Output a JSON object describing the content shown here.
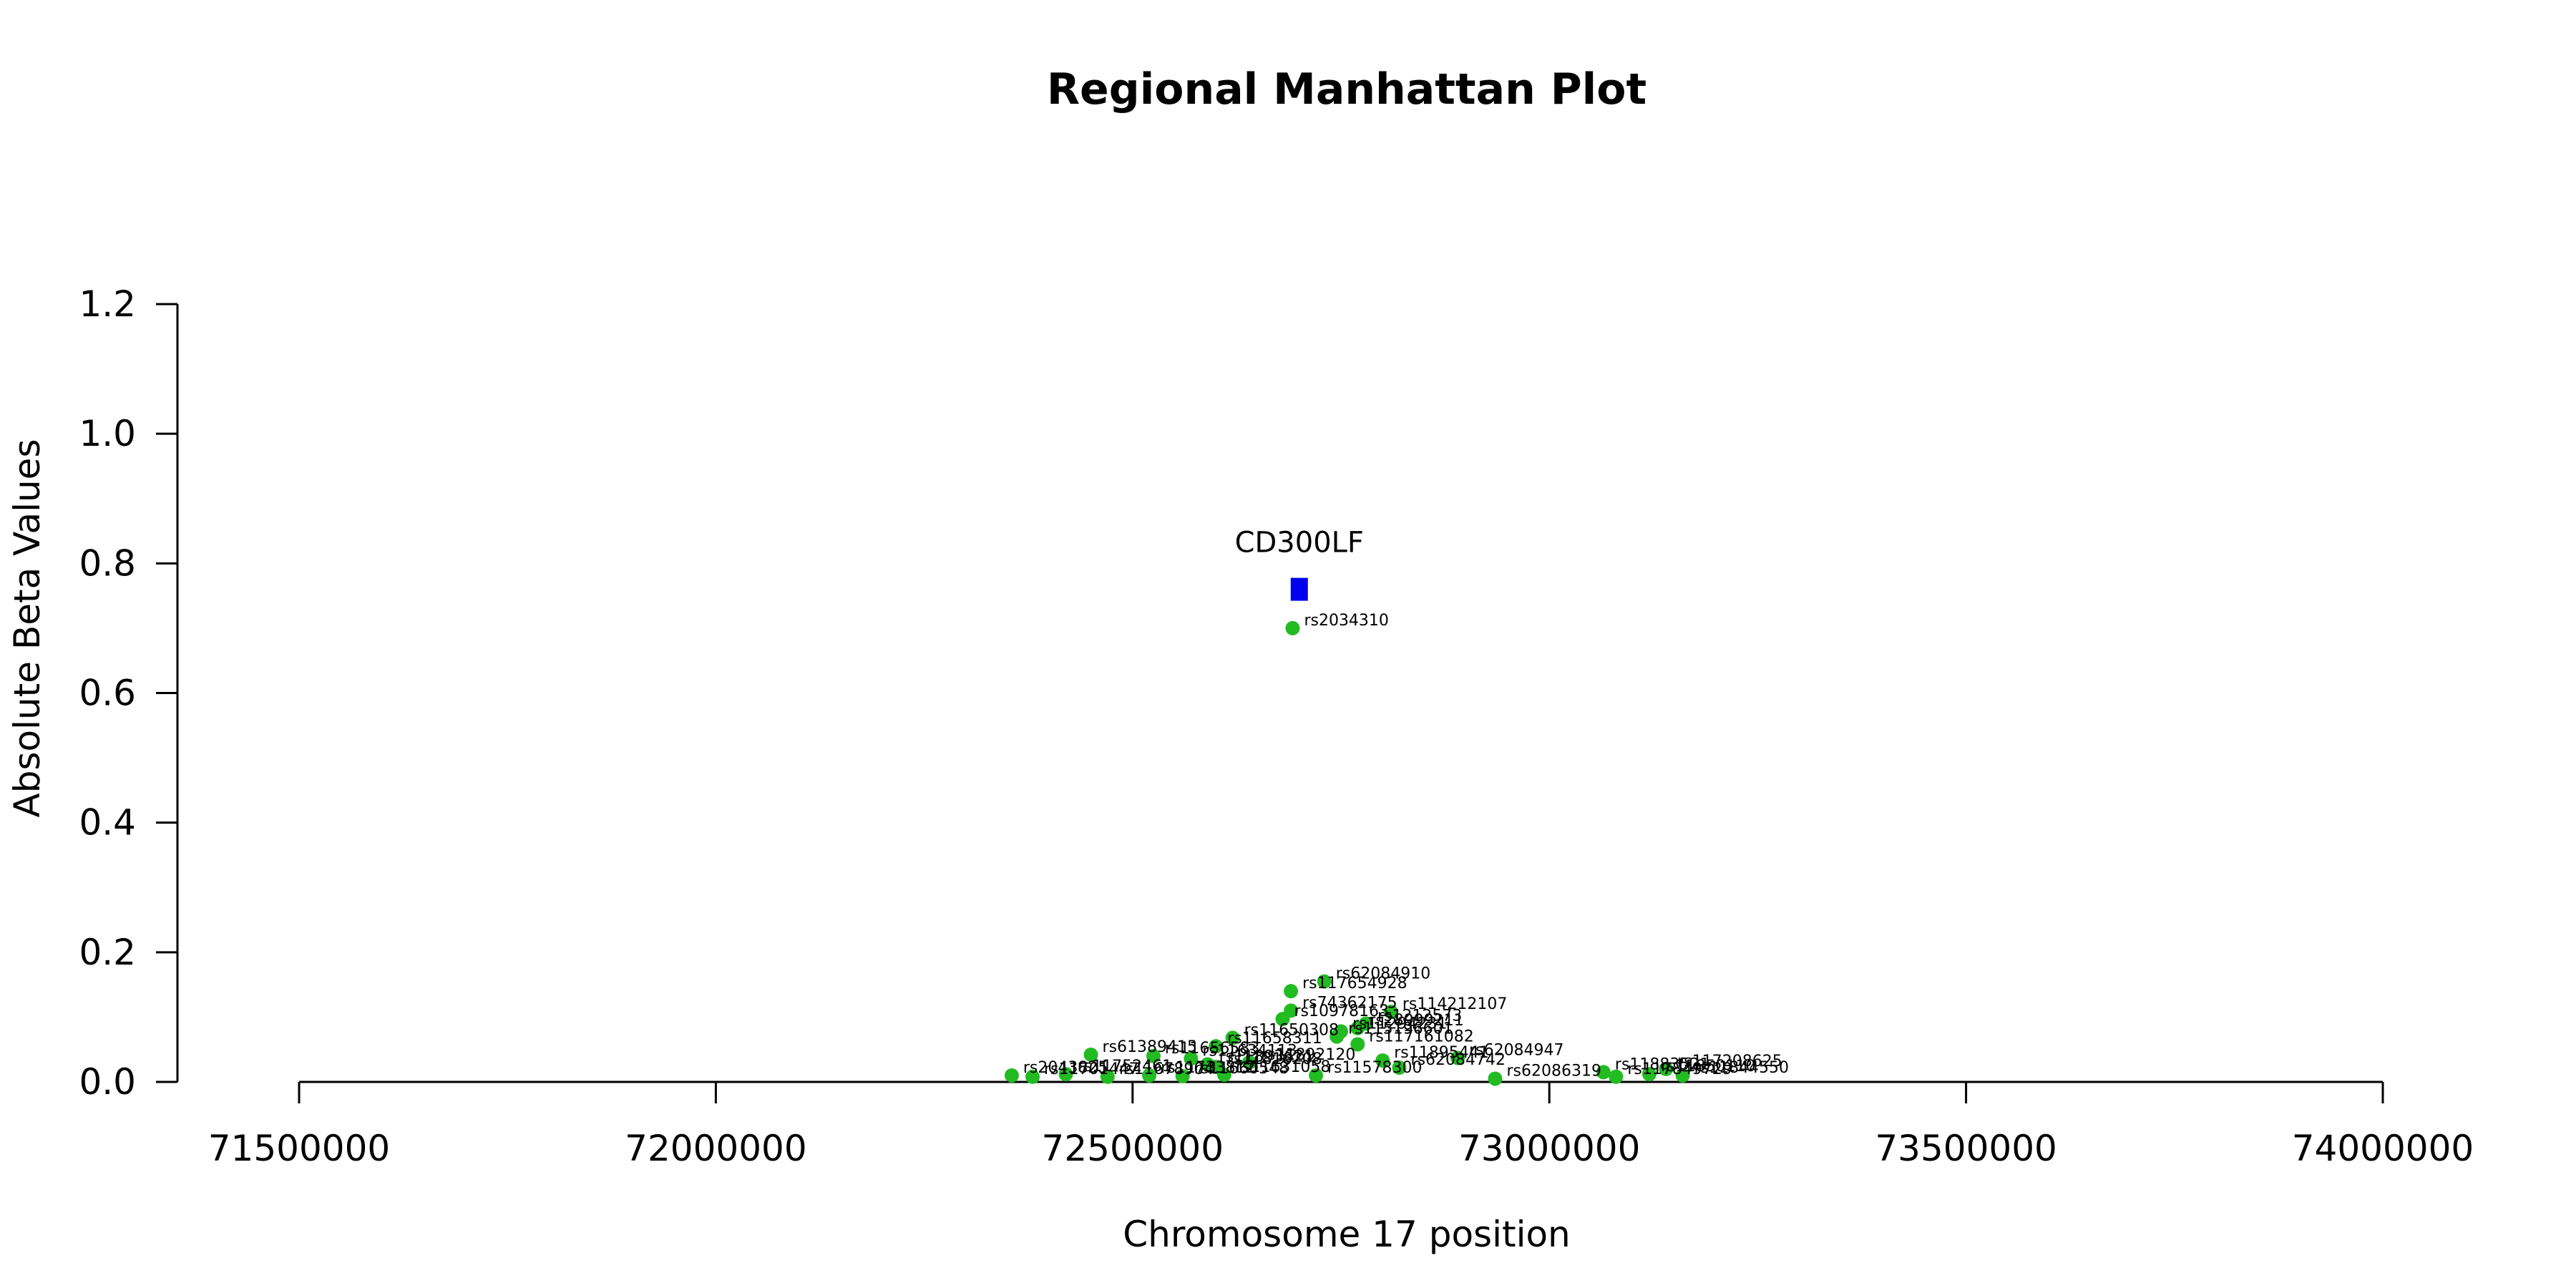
{
  "chart_data": {
    "type": "scatter",
    "title": "Regional Manhattan Plot",
    "xlabel": "Chromosome 17 position",
    "ylabel": "Absolute Beta Values",
    "xlim": [
      71500000,
      74000000
    ],
    "ylim": [
      0,
      1.2
    ],
    "x_ticks": [
      "71500000",
      "72000000",
      "72500000",
      "73000000",
      "73500000",
      "74000000"
    ],
    "y_ticks": [
      "0.0",
      "0.2",
      "0.4",
      "0.6",
      "0.8",
      "1.0",
      "1.2"
    ],
    "grid": false,
    "colors": {
      "snp": "#22bb22",
      "gene": "#0000ee"
    },
    "gene": {
      "name": "CD300LF",
      "x": 72700000,
      "y": 0.76
    },
    "series": [
      {
        "points": [
          {
            "label": "rs2034310",
            "x": 72692000,
            "y": 0.7
          },
          {
            "label": "rs62084910",
            "x": 72730000,
            "y": 0.155
          },
          {
            "label": "rs117654928",
            "x": 72690000,
            "y": 0.14
          },
          {
            "label": "rs114212107",
            "x": 72810000,
            "y": 0.108
          },
          {
            "label": "rs74362175",
            "x": 72690000,
            "y": 0.11
          },
          {
            "label": "rs10978163",
            "x": 72680000,
            "y": 0.097
          },
          {
            "label": "rs1212573",
            "x": 72780000,
            "y": 0.09
          },
          {
            "label": "rs28999211",
            "x": 72770000,
            "y": 0.083
          },
          {
            "label": "rs11294231",
            "x": 72750000,
            "y": 0.078
          },
          {
            "label": "rs11650308",
            "x": 72620000,
            "y": 0.068
          },
          {
            "label": "rs115196601",
            "x": 72745000,
            "y": 0.07
          },
          {
            "label": "rs117161082",
            "x": 72770000,
            "y": 0.058
          },
          {
            "label": "rs61389415",
            "x": 72450000,
            "y": 0.042
          },
          {
            "label": "rs11656583",
            "x": 72525000,
            "y": 0.04
          },
          {
            "label": "rs11658311",
            "x": 72600000,
            "y": 0.055
          },
          {
            "label": "rs11634113",
            "x": 72570000,
            "y": 0.036
          },
          {
            "label": "rs11892120",
            "x": 72640000,
            "y": 0.03
          },
          {
            "label": "rs62084947",
            "x": 72890000,
            "y": 0.037
          },
          {
            "label": "rs11895441",
            "x": 72800000,
            "y": 0.033
          },
          {
            "label": "rs62084742",
            "x": 72820000,
            "y": 0.022
          },
          {
            "label": "rs11893621",
            "x": 72590000,
            "y": 0.027
          },
          {
            "label": "rs11816208",
            "x": 72600000,
            "y": 0.023
          },
          {
            "label": "rs11578300",
            "x": 72720000,
            "y": 0.01
          },
          {
            "label": "rs62086319",
            "x": 72935000,
            "y": 0.005
          },
          {
            "label": "rs11883521",
            "x": 73065000,
            "y": 0.015
          },
          {
            "label": "rs117208625",
            "x": 73140000,
            "y": 0.02
          },
          {
            "label": "rs117849729",
            "x": 73080000,
            "y": 0.008
          },
          {
            "label": "rs11844550",
            "x": 73160000,
            "y": 0.01
          },
          {
            "label": "rs11850110",
            "x": 73120000,
            "y": 0.012
          },
          {
            "label": "rs2043825",
            "x": 72355000,
            "y": 0.01
          },
          {
            "label": "rs11701447",
            "x": 72380000,
            "y": 0.008
          },
          {
            "label": "rs11752461",
            "x": 72420000,
            "y": 0.012
          },
          {
            "label": "rs11678904",
            "x": 72470000,
            "y": 0.008
          },
          {
            "label": "rs11733812",
            "x": 72520000,
            "y": 0.01
          },
          {
            "label": "rs11660548",
            "x": 72560000,
            "y": 0.009
          },
          {
            "label": "rs11631058",
            "x": 72610000,
            "y": 0.011
          }
        ]
      }
    ]
  }
}
